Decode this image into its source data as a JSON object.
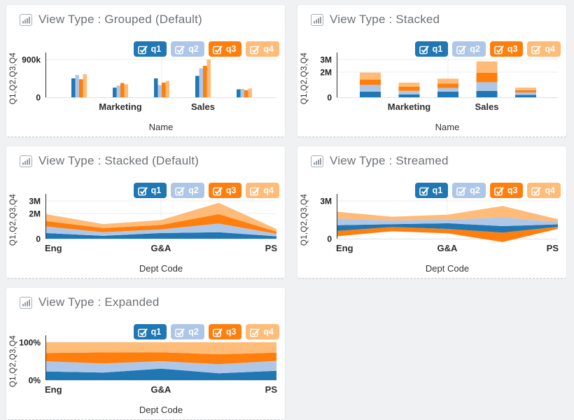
{
  "page": {
    "background": "#eff1f3",
    "card_background": "#ffffff"
  },
  "legend": {
    "position": "top-right",
    "items": [
      {
        "label": "q1",
        "checked": true,
        "color": "#1f77b4"
      },
      {
        "label": "q2",
        "checked": true,
        "color": "#aec7e8"
      },
      {
        "label": "q3",
        "checked": true,
        "color": "#ff7f0e"
      },
      {
        "label": "q4",
        "checked": true,
        "color": "#ffbb78"
      }
    ]
  },
  "panels": [
    {
      "title": "View Type : Grouped (Default)"
    },
    {
      "title": "View Type : Stacked"
    },
    {
      "title": "View Type : Stacked (Default)"
    },
    {
      "title": "View Type : Streamed"
    },
    {
      "title": "View Type : Expanded"
    }
  ],
  "chart_data": [
    {
      "type": "bar",
      "variant": "grouped",
      "title": "View Type : Grouped (Default)",
      "categories": [
        "",
        "Marketing",
        "",
        "Sales",
        ""
      ],
      "xlabel": "Name",
      "ylabel": "Q1,Q2,Q3,Q4",
      "ylim": [
        0,
        900000
      ],
      "y_ticks": [
        {
          "label": "900k",
          "value": 900000
        },
        {
          "label": "0",
          "value": 0
        }
      ],
      "grid": true,
      "legend_position": "top-right",
      "series": [
        {
          "name": "q1",
          "color": "#1f77b4",
          "values": [
            450000,
            230000,
            450000,
            510000,
            190000
          ]
        },
        {
          "name": "q2",
          "color": "#aec7e8",
          "values": [
            530000,
            280000,
            290000,
            690000,
            200000
          ]
        },
        {
          "name": "q3",
          "color": "#ff7f0e",
          "values": [
            430000,
            340000,
            350000,
            750000,
            170000
          ]
        },
        {
          "name": "q4",
          "color": "#ffbb78",
          "values": [
            550000,
            310000,
            390000,
            900000,
            210000
          ]
        }
      ]
    },
    {
      "type": "bar",
      "variant": "stacked",
      "title": "View Type : Stacked",
      "categories": [
        "",
        "Marketing",
        "",
        "Sales",
        ""
      ],
      "xlabel": "Name",
      "ylabel": "Q1,Q2,Q3,Q4",
      "ylim": [
        0,
        3000000
      ],
      "y_ticks": [
        {
          "label": "3M",
          "value": 3000000
        },
        {
          "label": "2M",
          "value": 2000000
        },
        {
          "label": "0",
          "value": 0
        }
      ],
      "grid": true,
      "legend_position": "top-right",
      "series": [
        {
          "name": "q1",
          "color": "#1f77b4",
          "values": [
            450000,
            230000,
            450000,
            510000,
            190000
          ]
        },
        {
          "name": "q2",
          "color": "#aec7e8",
          "values": [
            530000,
            280000,
            290000,
            690000,
            200000
          ]
        },
        {
          "name": "q3",
          "color": "#ff7f0e",
          "values": [
            430000,
            340000,
            350000,
            750000,
            170000
          ]
        },
        {
          "name": "q4",
          "color": "#ffbb78",
          "values": [
            550000,
            310000,
            390000,
            900000,
            210000
          ]
        }
      ]
    },
    {
      "type": "area",
      "variant": "stacked",
      "title": "View Type : Stacked (Default)",
      "categories": [
        "Eng",
        "",
        "G&A",
        "",
        "PS"
      ],
      "xlabel": "Dept Code",
      "ylabel": "Q1,Q2,Q3,Q4",
      "ylim": [
        0,
        3000000
      ],
      "y_ticks": [
        {
          "label": "3M",
          "value": 3000000
        },
        {
          "label": "2M",
          "value": 2000000
        },
        {
          "label": "0",
          "value": 0
        }
      ],
      "grid": true,
      "legend_position": "top-right",
      "series": [
        {
          "name": "q1",
          "color": "#1f77b4",
          "values": [
            450000,
            230000,
            450000,
            510000,
            190000
          ]
        },
        {
          "name": "q2",
          "color": "#aec7e8",
          "values": [
            530000,
            280000,
            290000,
            690000,
            200000
          ]
        },
        {
          "name": "q3",
          "color": "#ff7f0e",
          "values": [
            430000,
            340000,
            350000,
            750000,
            170000
          ]
        },
        {
          "name": "q4",
          "color": "#ffbb78",
          "values": [
            550000,
            310000,
            390000,
            900000,
            210000
          ]
        }
      ]
    },
    {
      "type": "area",
      "variant": "stream",
      "title": "View Type : Streamed",
      "categories": [
        "Eng",
        "",
        "G&A",
        "",
        "PS"
      ],
      "xlabel": "Dept Code",
      "ylabel": "Q1,Q2,Q3,Q4",
      "ylim": [
        0,
        3000000
      ],
      "y_ticks": [
        {
          "label": "3M",
          "value": 3000000
        },
        {
          "label": "0",
          "value": 0
        }
      ],
      "grid": true,
      "legend_position": "top-right",
      "layer_order_bottom_to_top": [
        "q3",
        "q1",
        "q2",
        "q4"
      ],
      "series": [
        {
          "name": "q1",
          "color": "#1f77b4",
          "values": [
            450000,
            230000,
            450000,
            510000,
            190000
          ]
        },
        {
          "name": "q2",
          "color": "#aec7e8",
          "values": [
            530000,
            280000,
            290000,
            690000,
            200000
          ]
        },
        {
          "name": "q3",
          "color": "#ff7f0e",
          "values": [
            430000,
            340000,
            350000,
            750000,
            170000
          ]
        },
        {
          "name": "q4",
          "color": "#ffbb78",
          "values": [
            550000,
            310000,
            390000,
            900000,
            210000
          ]
        }
      ]
    },
    {
      "type": "area",
      "variant": "expanded",
      "title": "View Type : Expanded",
      "categories": [
        "Eng",
        "",
        "G&A",
        "",
        "PS"
      ],
      "xlabel": "Dept Code",
      "ylabel": "Q1,Q2,Q3,Q4",
      "ylim": [
        0,
        1
      ],
      "normalized": true,
      "y_ticks": [
        {
          "label": "100%",
          "value": 1
        },
        {
          "label": "0%",
          "value": 0
        }
      ],
      "grid": true,
      "legend_position": "top-right",
      "series": [
        {
          "name": "q1",
          "color": "#1f77b4",
          "values": [
            450000,
            230000,
            450000,
            510000,
            190000
          ]
        },
        {
          "name": "q2",
          "color": "#aec7e8",
          "values": [
            530000,
            280000,
            290000,
            690000,
            200000
          ]
        },
        {
          "name": "q3",
          "color": "#ff7f0e",
          "values": [
            430000,
            340000,
            350000,
            750000,
            170000
          ]
        },
        {
          "name": "q4",
          "color": "#ffbb78",
          "values": [
            550000,
            310000,
            390000,
            900000,
            210000
          ]
        }
      ]
    }
  ]
}
